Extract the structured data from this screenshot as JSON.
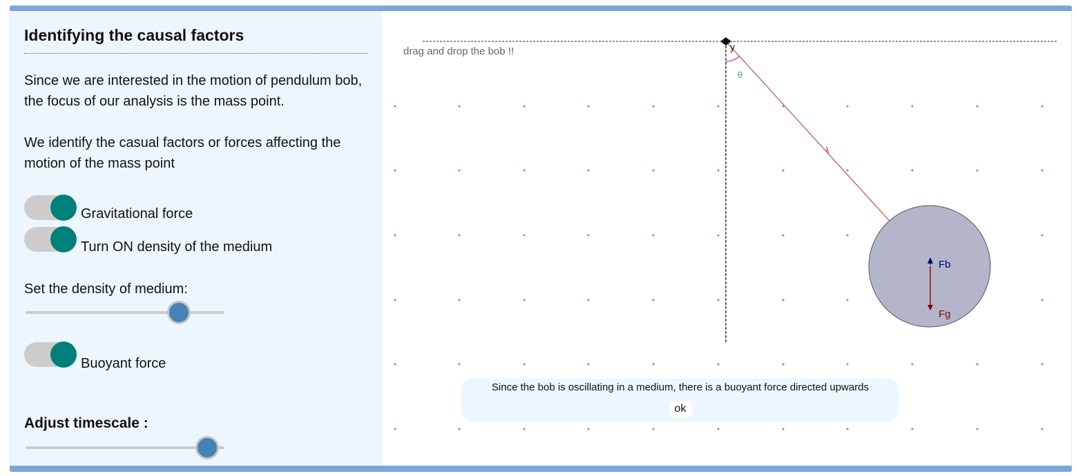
{
  "sidebar": {
    "title": "Identifying the causal factors",
    "intro_paragraph": "Since we are interested in the motion of pendulum bob, the focus of our analysis is the mass point.",
    "factors_paragraph": "We identify the casual factors or forces affecting the motion of the mass point",
    "toggles": [
      {
        "label": "Gravitational force",
        "on": true
      },
      {
        "label": "Turn ON density of the medium",
        "on": true
      },
      {
        "label": "Buoyant force",
        "on": true
      }
    ],
    "density_slider": {
      "label": "Set the density of medium:",
      "value_fraction": 0.79
    },
    "timescale_slider": {
      "label": "Adjust timescale :",
      "value_fraction": 0.92
    }
  },
  "simulation": {
    "hint": "drag and drop the bob !!",
    "y_axis_label": "y",
    "angle_label": "θ",
    "string_label": "l",
    "force_labels": {
      "buoyant": "Fb",
      "gravity": "Fg"
    },
    "message": "Since the bob is oscillating in a medium, there is a buoyant force directed upwards",
    "ok_label": "ok"
  },
  "colors": {
    "frame_bar": "#7aa6dc",
    "sidebar_bg": "#eef6fd",
    "toggle_knob": "#00807a",
    "slider_thumb": "#4682b4",
    "bob_fill": "#b3b5cb",
    "string": "#c0504d",
    "buoyant_arrow": "#000080",
    "gravity_arrow": "#8b0000",
    "grid_dots": "#8f8fe6",
    "angle_label": "#3cb371"
  }
}
